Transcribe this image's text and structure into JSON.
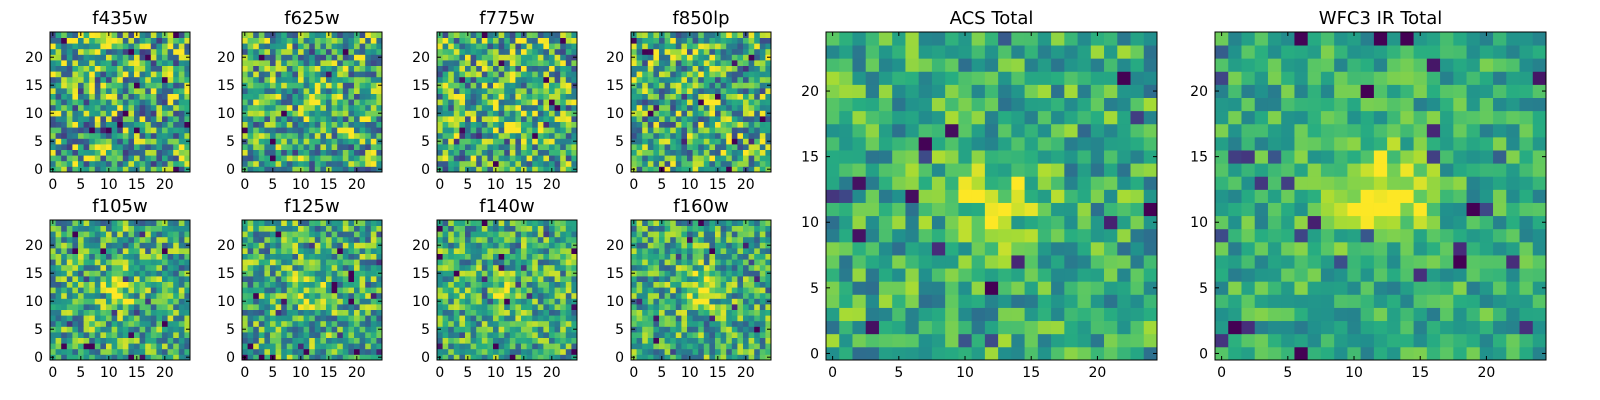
{
  "chart_data": [
    {
      "type": "heatmap",
      "title": "f435w",
      "x_range": [
        0,
        24
      ],
      "y_range": [
        0,
        24
      ],
      "x_ticks": [
        0,
        5,
        10,
        15,
        20
      ],
      "y_ticks": [
        0,
        5,
        10,
        15,
        20
      ],
      "grid_size": [
        25,
        25
      ],
      "colormap": "viridis",
      "blob_center": [
        12,
        12
      ],
      "blob_strength": 0.05,
      "noise": 0.55,
      "seed": 11
    },
    {
      "type": "heatmap",
      "title": "f625w",
      "x_range": [
        0,
        24
      ],
      "y_range": [
        0,
        24
      ],
      "x_ticks": [
        0,
        5,
        10,
        15,
        20
      ],
      "y_ticks": [
        0,
        5,
        10,
        15,
        20
      ],
      "grid_size": [
        25,
        25
      ],
      "colormap": "viridis",
      "blob_center": [
        12,
        12
      ],
      "blob_strength": 0.1,
      "noise": 0.5,
      "seed": 22
    },
    {
      "type": "heatmap",
      "title": "f775w",
      "x_range": [
        0,
        24
      ],
      "y_range": [
        0,
        24
      ],
      "x_ticks": [
        0,
        5,
        10,
        15,
        20
      ],
      "y_ticks": [
        0,
        5,
        10,
        15,
        20
      ],
      "grid_size": [
        25,
        25
      ],
      "colormap": "viridis",
      "blob_center": [
        12,
        12
      ],
      "blob_strength": 0.12,
      "noise": 0.5,
      "seed": 33
    },
    {
      "type": "heatmap",
      "title": "f850lp",
      "x_range": [
        0,
        24
      ],
      "y_range": [
        0,
        24
      ],
      "x_ticks": [
        0,
        5,
        10,
        15,
        20
      ],
      "y_ticks": [
        0,
        5,
        10,
        15,
        20
      ],
      "grid_size": [
        25,
        25
      ],
      "colormap": "viridis",
      "blob_center": [
        12,
        12
      ],
      "blob_strength": 0.1,
      "noise": 0.5,
      "seed": 44
    },
    {
      "type": "heatmap",
      "title": "f105w",
      "x_range": [
        0,
        24
      ],
      "y_range": [
        0,
        24
      ],
      "x_ticks": [
        0,
        5,
        10,
        15,
        20
      ],
      "y_ticks": [
        0,
        5,
        10,
        15,
        20
      ],
      "grid_size": [
        25,
        25
      ],
      "colormap": "viridis",
      "blob_center": [
        12,
        12
      ],
      "blob_strength": 0.22,
      "noise": 0.42,
      "seed": 55
    },
    {
      "type": "heatmap",
      "title": "f125w",
      "x_range": [
        0,
        24
      ],
      "y_range": [
        0,
        24
      ],
      "x_ticks": [
        0,
        5,
        10,
        15,
        20
      ],
      "y_ticks": [
        0,
        5,
        10,
        15,
        20
      ],
      "grid_size": [
        25,
        25
      ],
      "colormap": "viridis",
      "blob_center": [
        12,
        12
      ],
      "blob_strength": 0.25,
      "noise": 0.42,
      "seed": 66
    },
    {
      "type": "heatmap",
      "title": "f140w",
      "x_range": [
        0,
        24
      ],
      "y_range": [
        0,
        24
      ],
      "x_ticks": [
        0,
        5,
        10,
        15,
        20
      ],
      "y_ticks": [
        0,
        5,
        10,
        15,
        20
      ],
      "grid_size": [
        25,
        25
      ],
      "colormap": "viridis",
      "blob_center": [
        12,
        12
      ],
      "blob_strength": 0.22,
      "noise": 0.4,
      "seed": 77
    },
    {
      "type": "heatmap",
      "title": "f160w",
      "x_range": [
        0,
        24
      ],
      "y_range": [
        0,
        24
      ],
      "x_ticks": [
        0,
        5,
        10,
        15,
        20
      ],
      "y_ticks": [
        0,
        5,
        10,
        15,
        20
      ],
      "grid_size": [
        25,
        25
      ],
      "colormap": "viridis",
      "blob_center": [
        12,
        12
      ],
      "blob_strength": 0.28,
      "noise": 0.4,
      "seed": 88
    },
    {
      "type": "heatmap",
      "title": "ACS Total",
      "x_range": [
        0,
        24
      ],
      "y_range": [
        0,
        24
      ],
      "x_ticks": [
        0,
        5,
        10,
        15,
        20
      ],
      "y_ticks": [
        0,
        5,
        10,
        15,
        20
      ],
      "grid_size": [
        25,
        25
      ],
      "colormap": "viridis",
      "blob_center": [
        12,
        12
      ],
      "blob_strength": 0.3,
      "noise": 0.32,
      "seed": 99
    },
    {
      "type": "heatmap",
      "title": "WFC3 IR Total",
      "x_range": [
        0,
        24
      ],
      "y_range": [
        0,
        24
      ],
      "x_ticks": [
        0,
        5,
        10,
        15,
        20
      ],
      "y_ticks": [
        0,
        5,
        10,
        15,
        20
      ],
      "grid_size": [
        25,
        25
      ],
      "colormap": "viridis",
      "blob_center": [
        12,
        12
      ],
      "blob_strength": 0.45,
      "noise": 0.25,
      "seed": 123
    }
  ]
}
